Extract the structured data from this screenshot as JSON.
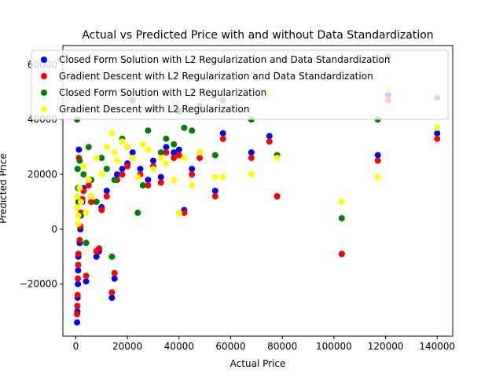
{
  "chart_data": {
    "type": "scatter",
    "title": "Actual vs Predicted Price with and without Data Standardization",
    "xlabel": "Actual Price",
    "ylabel": "Predicted Price",
    "xlim": [
      -5000,
      146000
    ],
    "ylim": [
      -39000,
      67000
    ],
    "xticks": [
      0,
      20000,
      40000,
      60000,
      80000,
      100000,
      120000,
      140000
    ],
    "yticks": [
      -20000,
      0,
      20000,
      40000,
      60000
    ],
    "legend_position": "top",
    "series": [
      {
        "name": "Closed Form Solution with L2 Regularization and Data Standardization",
        "color": "#0000ff",
        "x": [
          500,
          600,
          700,
          800,
          900,
          1000,
          1200,
          1500,
          1800,
          2000,
          2500,
          3000,
          4000,
          5000,
          6000,
          8000,
          9000,
          10000,
          12000,
          14000,
          15000,
          16000,
          18000,
          20000,
          22000,
          25000,
          28000,
          30000,
          33000,
          35000,
          38000,
          40000,
          42000,
          45000,
          48000,
          54000,
          57000,
          68000,
          75000,
          78000,
          103000,
          117000,
          121000,
          140000
        ],
        "y": [
          -34000,
          -30000,
          -25000,
          -20000,
          -15000,
          -10000,
          29000,
          -5000,
          0,
          5000,
          10000,
          15000,
          -19000,
          18000,
          12000,
          -10000,
          -8000,
          8000,
          14000,
          -25000,
          -18000,
          20000,
          22000,
          24000,
          28000,
          22000,
          18000,
          25000,
          19000,
          30000,
          28000,
          29000,
          7000,
          22000,
          28000,
          14000,
          35000,
          28000,
          34000,
          12000,
          -9000,
          27000,
          49000,
          35000
        ]
      },
      {
        "name": "Gradient Descent with L2 Regularization and Data Standardization",
        "color": "#ff0000",
        "x": [
          500,
          600,
          700,
          800,
          900,
          1000,
          1200,
          1500,
          1800,
          2000,
          2500,
          3000,
          4000,
          5000,
          6000,
          8000,
          9000,
          10000,
          12000,
          14000,
          15000,
          16000,
          18000,
          20000,
          22000,
          25000,
          28000,
          30000,
          33000,
          35000,
          38000,
          40000,
          42000,
          45000,
          48000,
          54000,
          57000,
          68000,
          75000,
          78000,
          103000,
          117000,
          121000,
          140000
        ],
        "y": [
          -31000,
          -28000,
          -24000,
          -18000,
          -13000,
          -9000,
          26000,
          -4000,
          1000,
          6000,
          11000,
          14000,
          -17000,
          16000,
          10000,
          -8000,
          -7000,
          7000,
          12000,
          -23000,
          -16000,
          18000,
          20000,
          23000,
          26000,
          20000,
          16000,
          23000,
          17000,
          28000,
          26000,
          27000,
          6000,
          20000,
          26000,
          12000,
          33000,
          26000,
          32000,
          12000,
          -9000,
          25000,
          47000,
          33000
        ]
      },
      {
        "name": "Closed Form Solution with L2 Regularization",
        "color": "#008000",
        "x": [
          500,
          700,
          900,
          1000,
          1500,
          2000,
          3000,
          4000,
          5000,
          6000,
          8000,
          10000,
          12000,
          14000,
          15000,
          18000,
          20000,
          22000,
          24000,
          26000,
          28000,
          30000,
          33000,
          35000,
          38000,
          40000,
          42000,
          45000,
          48000,
          54000,
          57000,
          68000,
          78000,
          103000,
          117000,
          121000,
          140000
        ],
        "y": [
          40000,
          22000,
          15000,
          10000,
          25000,
          5000,
          20000,
          -5000,
          30000,
          18000,
          10000,
          26000,
          22000,
          -10000,
          18000,
          33000,
          30000,
          47000,
          6000,
          16000,
          36000,
          44000,
          28000,
          33000,
          31000,
          43000,
          37000,
          36000,
          45000,
          27000,
          47000,
          40000,
          27000,
          4000,
          40000,
          63000,
          48000
        ]
      },
      {
        "name": "Gradient Descent with L2 Regularization",
        "color": "#ffff00",
        "x": [
          500,
          700,
          900,
          1000,
          1500,
          2000,
          3000,
          4000,
          5000,
          6000,
          8000,
          10000,
          12000,
          14000,
          15000,
          16000,
          18000,
          20000,
          22000,
          24000,
          26000,
          28000,
          30000,
          33000,
          35000,
          38000,
          40000,
          42000,
          45000,
          48000,
          54000,
          57000,
          68000,
          75000,
          78000,
          103000,
          117000,
          121000,
          140000
        ],
        "y": [
          8000,
          12000,
          5000,
          2000,
          15000,
          10000,
          23000,
          6000,
          18000,
          12000,
          26000,
          20000,
          30000,
          35000,
          28000,
          25000,
          32000,
          30000,
          26000,
          19000,
          31000,
          29000,
          22000,
          26000,
          24000,
          18000,
          6000,
          26000,
          16000,
          28000,
          19000,
          19000,
          20000,
          49000,
          26000,
          10000,
          19000,
          51000,
          37000
        ]
      }
    ]
  }
}
